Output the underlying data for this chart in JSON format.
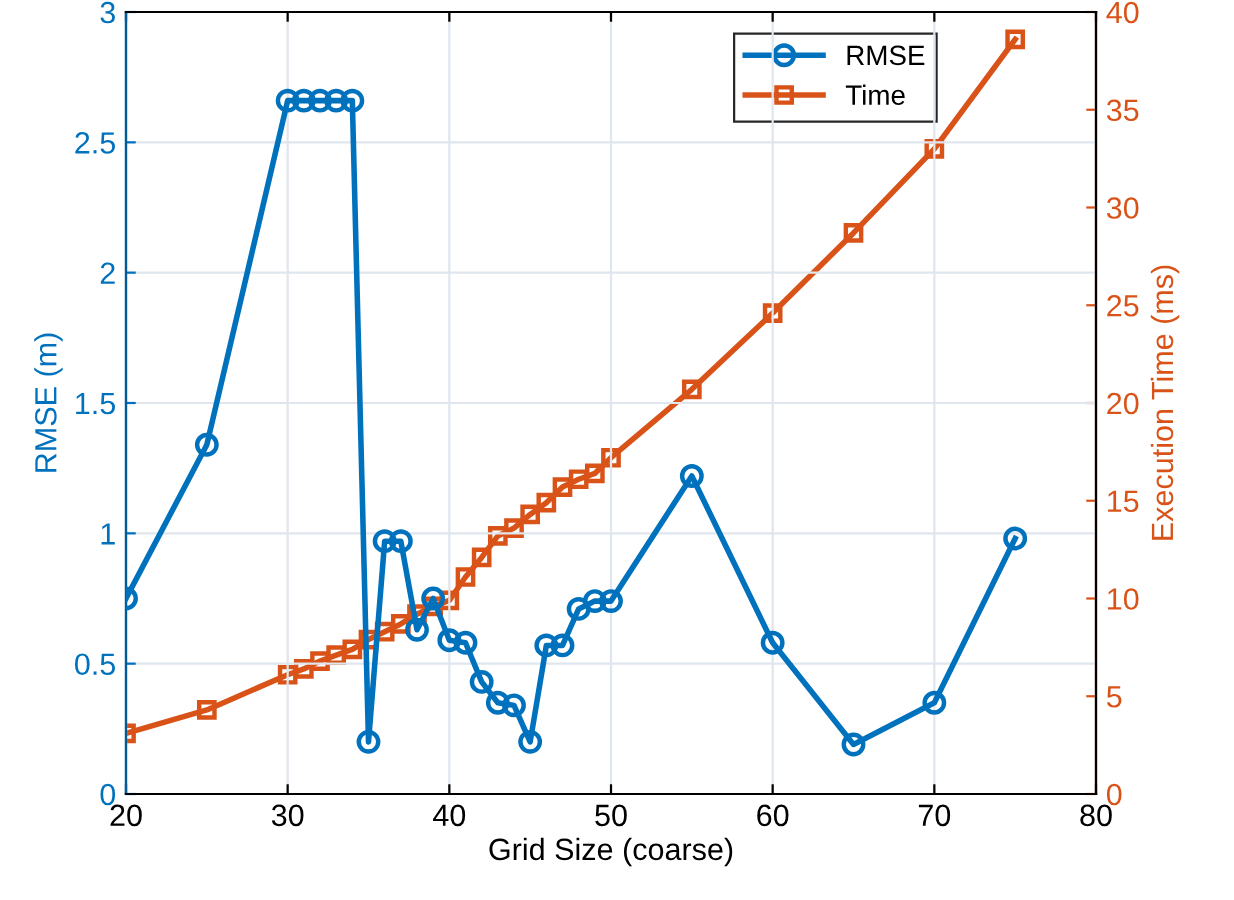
{
  "chart_data": {
    "type": "line",
    "xlabel": "Grid Size (coarse)",
    "ylabel": "RMSE (m)",
    "y2label": "Execution Time (ms)",
    "x": [
      20,
      25,
      30,
      31,
      32,
      33,
      34,
      35,
      36,
      37,
      38,
      39,
      40,
      41,
      42,
      43,
      44,
      45,
      46,
      47,
      48,
      49,
      50,
      55,
      60,
      65,
      70,
      75
    ],
    "series": [
      {
        "name": "RMSE",
        "color": "#0072bd",
        "marker": "circle",
        "values": [
          0.75,
          1.34,
          2.66,
          2.66,
          2.66,
          2.66,
          2.66,
          0.2,
          0.97,
          0.97,
          0.63,
          0.75,
          0.59,
          0.58,
          0.43,
          0.35,
          0.34,
          0.2,
          0.57,
          0.57,
          0.71,
          0.74,
          0.74,
          1.22,
          0.58,
          0.19,
          0.35,
          0.98
        ]
      },
      {
        "name": "Time",
        "color": "#d95319",
        "marker": "square",
        "axis": "y2",
        "values": [
          3.1,
          4.3,
          6.1,
          6.4,
          6.8,
          7.1,
          7.4,
          7.9,
          8.3,
          8.7,
          9.2,
          9.6,
          9.9,
          11.1,
          12.1,
          13.2,
          13.6,
          14.3,
          14.9,
          15.7,
          16.1,
          16.4,
          17.2,
          20.7,
          24.6,
          28.7,
          33.0,
          38.6
        ]
      }
    ],
    "xlim": [
      20,
      80
    ],
    "xticks": [
      20,
      30,
      40,
      50,
      60,
      70,
      80
    ],
    "ylim": [
      0,
      3
    ],
    "yticks": [
      0,
      0.5,
      1,
      1.5,
      2,
      2.5,
      3
    ],
    "y2lim": [
      0,
      40
    ],
    "y2ticks": [
      0,
      5,
      10,
      15,
      20,
      25,
      30,
      35,
      40
    ],
    "grid": true,
    "legend": "top right",
    "line_style": "solid"
  }
}
